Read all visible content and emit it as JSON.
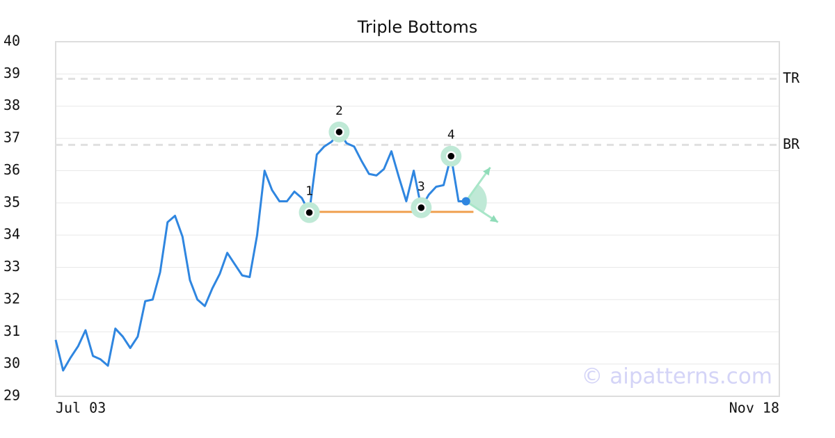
{
  "chart_data": {
    "type": "line",
    "title": "Triple Bottoms",
    "x": [
      0,
      1,
      2,
      3,
      4,
      5,
      6,
      7,
      8,
      9,
      10,
      11,
      12,
      13,
      14,
      15,
      16,
      17,
      18,
      19,
      20,
      21,
      22,
      23,
      24,
      25,
      26,
      27,
      28,
      29,
      30,
      31,
      32,
      33,
      34,
      35,
      36,
      37,
      38,
      39,
      40,
      41,
      42,
      43,
      44,
      45,
      46,
      47,
      48,
      49,
      50,
      51,
      52,
      53,
      54,
      55
    ],
    "values": [
      30.75,
      29.8,
      30.2,
      30.55,
      31.05,
      30.25,
      30.15,
      29.95,
      31.1,
      30.85,
      30.5,
      30.85,
      31.95,
      32.0,
      32.85,
      34.4,
      34.6,
      33.95,
      32.6,
      32.0,
      31.8,
      32.35,
      32.8,
      33.45,
      33.1,
      32.75,
      32.7,
      34.0,
      36.0,
      35.4,
      35.05,
      35.05,
      35.35,
      35.15,
      34.7,
      36.5,
      36.75,
      36.9,
      37.2,
      36.85,
      36.75,
      36.3,
      35.9,
      35.85,
      36.05,
      36.6,
      35.8,
      35.05,
      36.0,
      34.85,
      35.25,
      35.5,
      35.55,
      36.45,
      35.05,
      35.05
    ],
    "color": "#2f86e0",
    "xlim": [
      0,
      97
    ],
    "xticks": [
      {
        "value": 0,
        "label": "Jul 03"
      },
      {
        "value": 97,
        "label": "Nov 18"
      }
    ],
    "ylim": [
      29,
      40
    ],
    "yticks": [
      29,
      30,
      31,
      32,
      33,
      34,
      35,
      36,
      37,
      38,
      39,
      40
    ],
    "grid": true,
    "levels": [
      {
        "label": "TR",
        "value": 38.85
      },
      {
        "label": "BR",
        "value": 36.8
      }
    ],
    "support": {
      "value": 34.72,
      "x": [
        34,
        56
      ],
      "color": "#f0a050"
    },
    "pattern_points": [
      {
        "label": "1",
        "x": 34
      },
      {
        "label": "2",
        "x": 38
      },
      {
        "label": "3",
        "x": 49
      },
      {
        "label": "4",
        "x": 53
      }
    ],
    "watermark": "© aipatterns.com"
  }
}
